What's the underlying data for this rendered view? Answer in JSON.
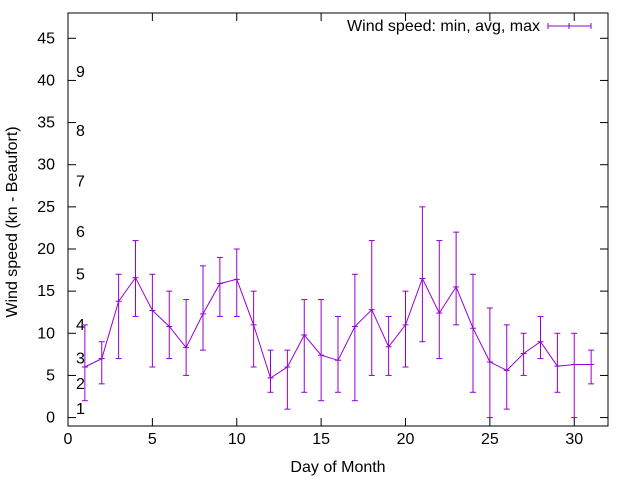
{
  "chart_data": {
    "type": "line",
    "xlabel": "Day of Month",
    "ylabel": "Wind speed (kn - Beaufort)",
    "xlim": [
      0,
      32
    ],
    "ylim": [
      -1,
      48
    ],
    "x_ticks": [
      0,
      5,
      10,
      15,
      20,
      25,
      30
    ],
    "y_ticks": [
      0,
      5,
      10,
      15,
      20,
      25,
      30,
      35,
      40,
      45
    ],
    "grid": false,
    "legend_position": "top-right",
    "beaufort_labels": [
      {
        "label": "1",
        "y": 1
      },
      {
        "label": "2",
        "y": 4
      },
      {
        "label": "3",
        "y": 7
      },
      {
        "label": "4",
        "y": 11
      },
      {
        "label": "5",
        "y": 17
      },
      {
        "label": "6",
        "y": 22
      },
      {
        "label": "7",
        "y": 28
      },
      {
        "label": "8",
        "y": 34
      },
      {
        "label": "9",
        "y": 41
      }
    ],
    "series": [
      {
        "name": "Wind speed: min, avg, max",
        "color": "#9400d3",
        "x": [
          1,
          2,
          3,
          4,
          5,
          6,
          7,
          8,
          9,
          10,
          11,
          12,
          13,
          14,
          15,
          16,
          17,
          18,
          19,
          20,
          21,
          22,
          23,
          24,
          25,
          26,
          27,
          28,
          29,
          30,
          31
        ],
        "avg": [
          6,
          7,
          13.8,
          16.6,
          12.7,
          10.8,
          8.3,
          12.3,
          15.9,
          16.4,
          11,
          4.7,
          6,
          9.8,
          7.4,
          6.8,
          10.8,
          12.8,
          8.4,
          11,
          16.5,
          12.4,
          15.5,
          10.6,
          6.6,
          5.6,
          7.6,
          9,
          6.1,
          6.3,
          6.3
        ],
        "min": [
          2,
          4,
          7,
          12,
          6,
          7,
          5,
          8,
          12,
          12,
          6,
          3,
          1,
          3,
          2,
          3,
          2,
          5,
          5,
          6,
          9,
          7,
          11,
          3,
          0,
          1,
          5,
          7,
          3,
          0,
          4
        ],
        "max": [
          11,
          9,
          17,
          21,
          17,
          15,
          14,
          18,
          19,
          20,
          15,
          8,
          8,
          14,
          14,
          12,
          17,
          21,
          12,
          15,
          25,
          21,
          22,
          17,
          13,
          11,
          10,
          12,
          10,
          10,
          8
        ]
      }
    ]
  }
}
